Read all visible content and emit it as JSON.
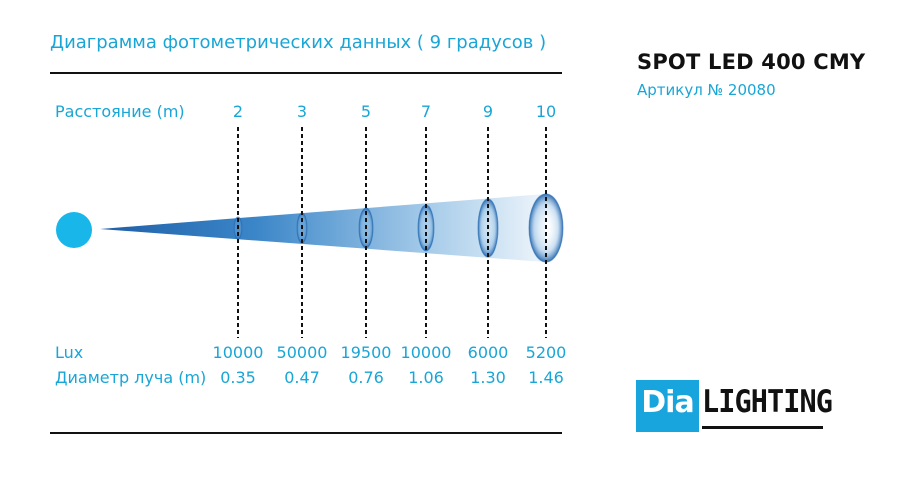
{
  "title": "Диаграмма фотометрических данных ( 9 градусов )",
  "product": {
    "name": "SPOT LED 400 CMY",
    "article": "Артикул № 20080"
  },
  "rows": {
    "distance_label": "Расстояние (m)",
    "lux_label": "Lux",
    "diameter_label": "Диаметр луча (m)"
  },
  "columns": [
    {
      "distance": "2",
      "lux": "10000",
      "diameter": "0.35"
    },
    {
      "distance": "3",
      "lux": "50000",
      "diameter": "0.47"
    },
    {
      "distance": "5",
      "lux": "19500",
      "diameter": "0.76"
    },
    {
      "distance": "7",
      "lux": "10000",
      "diameter": "1.06"
    },
    {
      "distance": "9",
      "lux": "6000",
      "diameter": "1.30"
    },
    {
      "distance": "10",
      "lux": "5200",
      "diameter": "1.46"
    }
  ],
  "logo": {
    "part1": "Dia",
    "part2": "LIGHTING"
  },
  "colors": {
    "accent": "#19a6d6",
    "beam": "#2a72b8",
    "rule": "#111111"
  }
}
